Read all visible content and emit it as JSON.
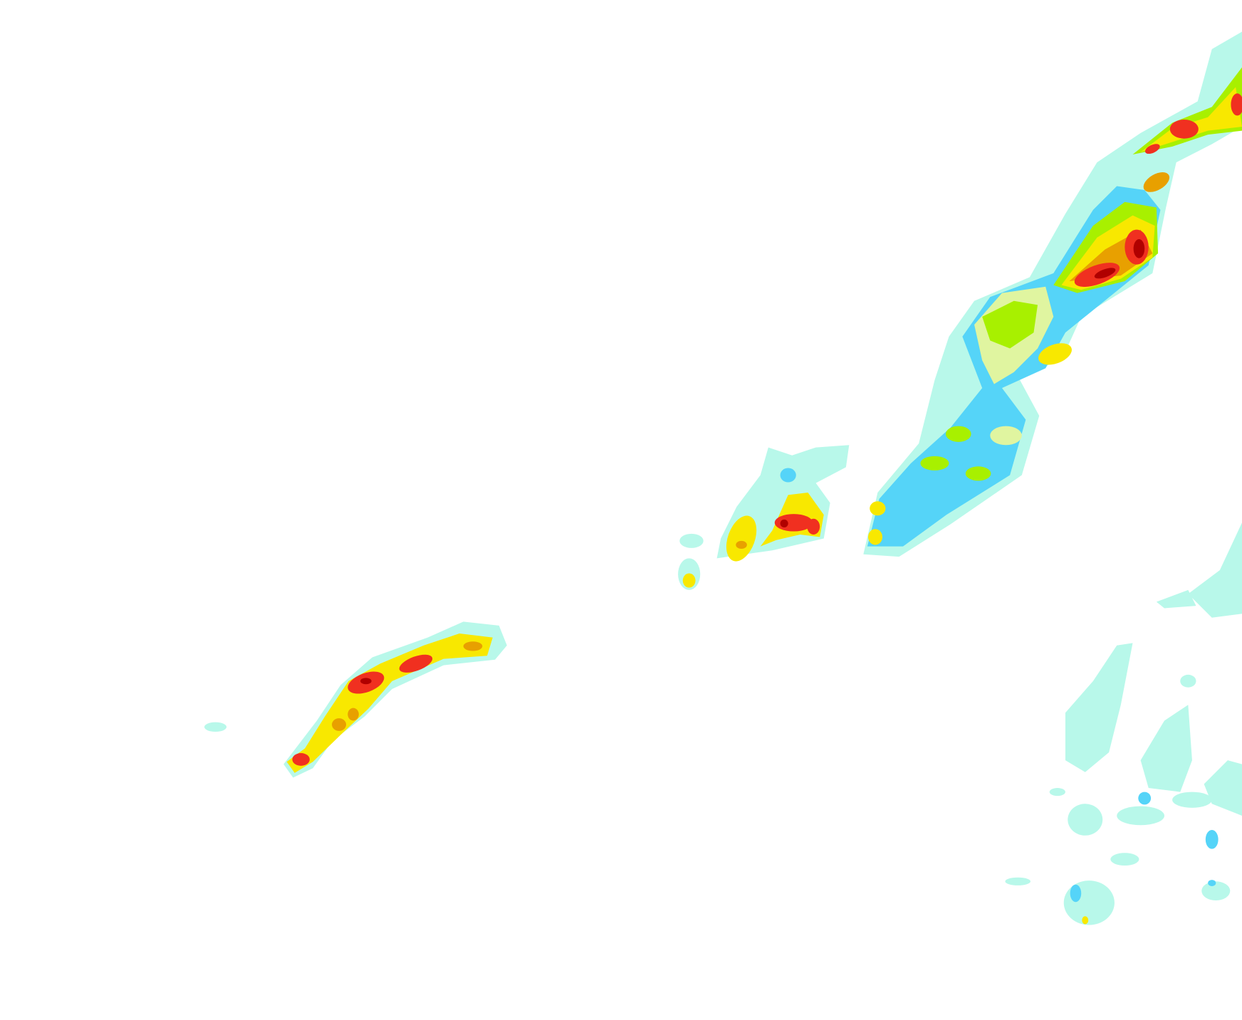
{
  "map": {
    "type": "precipitation-radar-overlay",
    "background": "#ffffff",
    "intensity_colors": {
      "very_light": "#b8f8ea",
      "light": "#55d4f8",
      "light_moderate": "#e0f5a0",
      "moderate": "#a8f000",
      "moderate_heavy": "#f8f060",
      "heavy": "#f8e800",
      "very_heavy": "#e8a000",
      "intense": "#f03020",
      "extreme": "#b00000"
    }
  }
}
